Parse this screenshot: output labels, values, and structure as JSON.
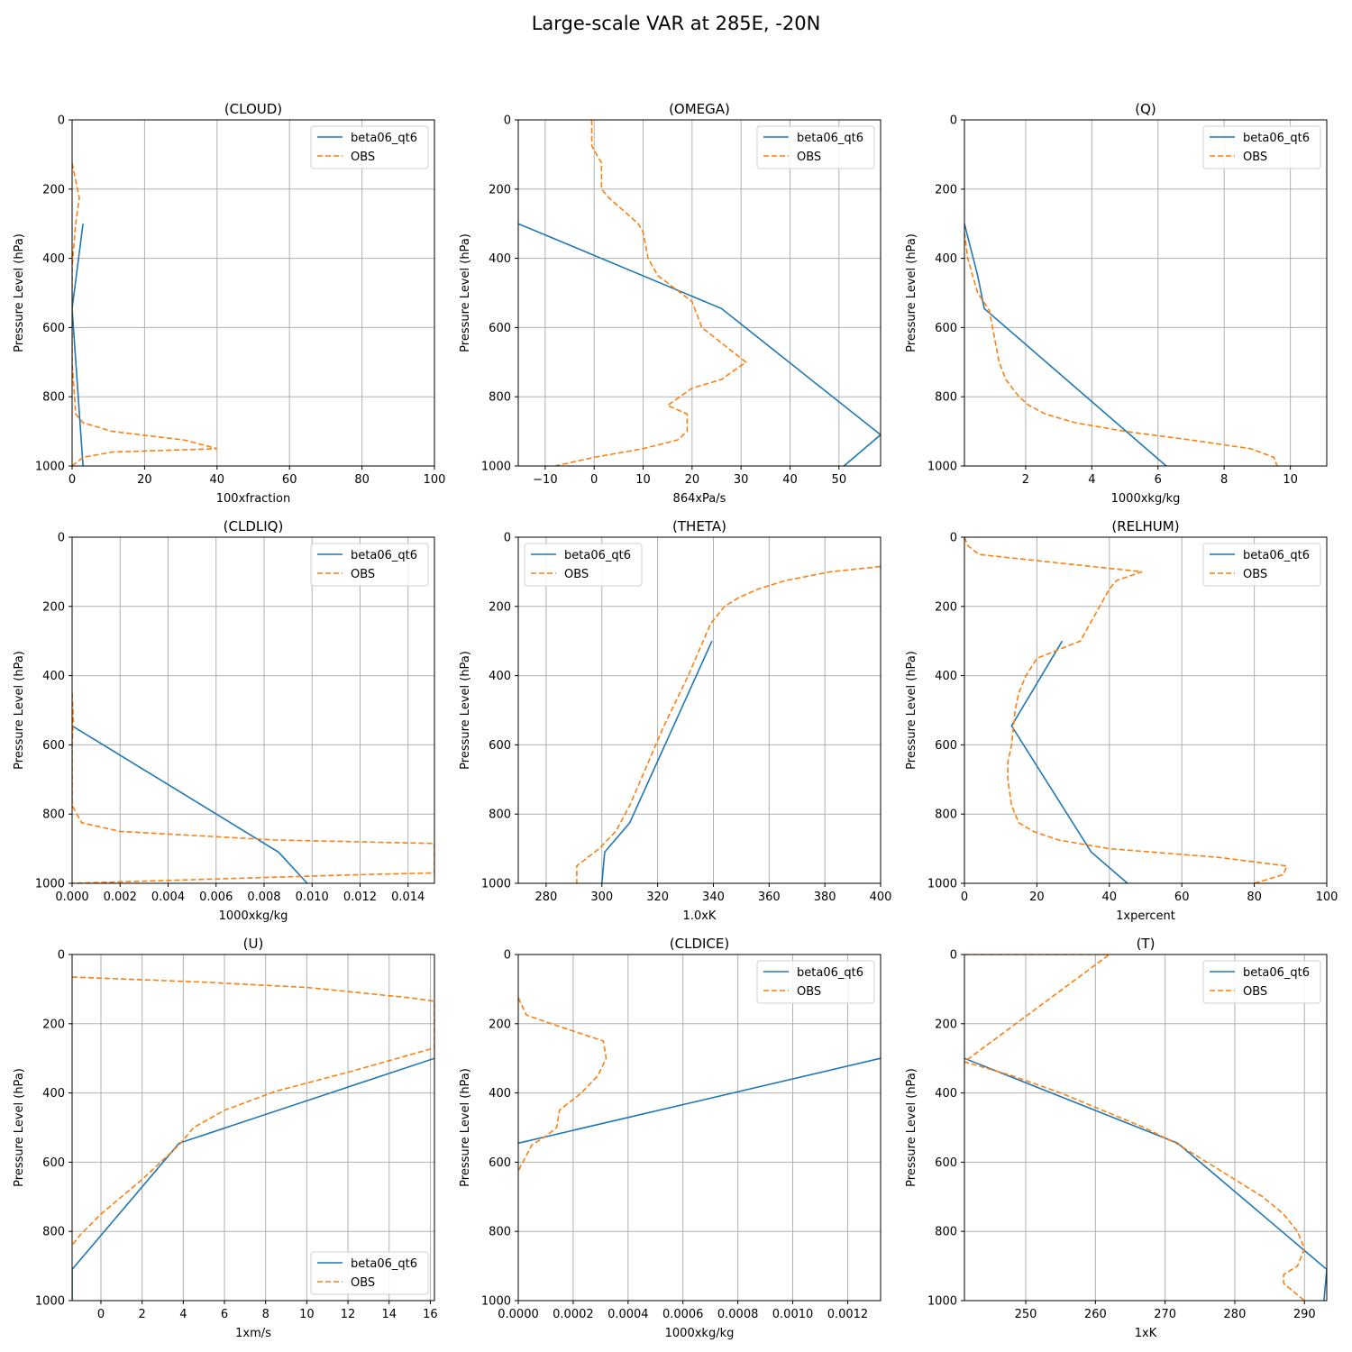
{
  "figure": {
    "title": "Large-scale VAR at 285E, -20N"
  },
  "colors": {
    "model": "#1f77b4",
    "obs": "#ff7f0e",
    "grid": "#b0b0b0",
    "axis": "#000000"
  },
  "chart_data": [
    {
      "type": "line",
      "title": "(CLOUD)",
      "xlabel": "100xfraction",
      "ylabel": "Pressure Level (hPa)",
      "xlim": [
        0,
        100
      ],
      "ylim": [
        1000,
        0
      ],
      "y_inverted": true,
      "grid": true,
      "legend": "top-right",
      "xticks": [
        0,
        20,
        40,
        60,
        80,
        100
      ],
      "xtick_labels": [
        "0",
        "20",
        "40",
        "60",
        "80",
        "100"
      ],
      "yticks": [
        0,
        200,
        400,
        600,
        800,
        1000
      ],
      "series": [
        {
          "name": "beta06_qt6",
          "style": "solid",
          "x": [
            3,
            0,
            3
          ],
          "y": [
            300,
            545,
            1000
          ]
        },
        {
          "name": "OBS",
          "style": "dashed",
          "x": [
            0,
            2,
            1,
            0,
            0,
            0,
            1,
            3,
            11,
            31,
            40,
            11,
            3,
            0
          ],
          "y": [
            125,
            225,
            300,
            425,
            550,
            700,
            850,
            875,
            900,
            925,
            950,
            960,
            975,
            1000
          ]
        }
      ]
    },
    {
      "type": "line",
      "title": "(OMEGA)",
      "xlabel": "864xPa/s",
      "ylabel": "Pressure Level (hPa)",
      "xlim": [
        -15.5,
        58.5
      ],
      "ylim": [
        1000,
        0
      ],
      "y_inverted": true,
      "grid": true,
      "legend": "top-right",
      "xticks": [
        -10,
        0,
        10,
        20,
        30,
        40,
        50
      ],
      "xtick_labels": [
        "−10",
        "0",
        "10",
        "20",
        "30",
        "40",
        "50"
      ],
      "yticks": [
        0,
        200,
        400,
        600,
        800,
        1000
      ],
      "series": [
        {
          "name": "beta06_qt6",
          "style": "solid",
          "x": [
            -15.5,
            26,
            58.5,
            51
          ],
          "y": [
            300,
            545,
            910,
            1000
          ]
        },
        {
          "name": "OBS",
          "style": "dashed",
          "x": [
            -0.5,
            -0.5,
            0.5,
            1.5,
            1.5,
            1.5,
            3,
            9,
            10,
            11,
            13,
            20,
            22,
            31,
            30,
            26,
            20,
            15,
            19,
            19,
            17,
            10,
            0,
            -8
          ],
          "y": [
            0,
            75,
            100,
            125,
            150,
            200,
            225,
            300,
            325,
            400,
            450,
            525,
            600,
            700,
            710,
            750,
            775,
            825,
            850,
            900,
            925,
            950,
            975,
            1000
          ]
        }
      ]
    },
    {
      "type": "line",
      "title": "(Q)",
      "xlabel": "1000xkg/kg",
      "ylabel": "Pressure Level (hPa)",
      "xlim": [
        0.15,
        11.1
      ],
      "ylim": [
        1000,
        0
      ],
      "y_inverted": true,
      "grid": true,
      "legend": "top-right",
      "xticks": [
        2,
        4,
        6,
        8,
        10
      ],
      "xtick_labels": [
        "2",
        "4",
        "6",
        "8",
        "10"
      ],
      "yticks": [
        0,
        200,
        400,
        600,
        800,
        1000
      ],
      "series": [
        {
          "name": "beta06_qt6",
          "style": "solid",
          "x": [
            0.15,
            0.55,
            0.75,
            6.25
          ],
          "y": [
            300,
            450,
            545,
            1000
          ]
        },
        {
          "name": "OBS",
          "style": "dashed",
          "x": [
            0.15,
            0.25,
            0.55,
            0.9,
            1.0,
            1.2,
            1.4,
            1.8,
            2.1,
            2.6,
            3.5,
            5.0,
            7.0,
            8.8,
            9.5,
            9.6
          ],
          "y": [
            325,
            400,
            500,
            550,
            600,
            700,
            750,
            800,
            825,
            850,
            875,
            900,
            925,
            950,
            975,
            1000
          ]
        }
      ]
    },
    {
      "type": "line",
      "title": "(CLDLIQ)",
      "xlabel": "1000xkg/kg",
      "ylabel": "Pressure Level (hPa)",
      "xlim": [
        0,
        0.0151
      ],
      "ylim": [
        1000,
        0
      ],
      "y_inverted": true,
      "grid": true,
      "legend": "top-right",
      "xticks": [
        0,
        0.002,
        0.004,
        0.006,
        0.008,
        0.01,
        0.012,
        0.014
      ],
      "xtick_labels": [
        "0.000",
        "0.002",
        "0.004",
        "0.006",
        "0.008",
        "0.010",
        "0.012",
        "0.014"
      ],
      "yticks": [
        0,
        200,
        400,
        600,
        800,
        1000
      ],
      "series": [
        {
          "name": "beta06_qt6",
          "style": "solid",
          "x": [
            0,
            0.0086,
            0.0098
          ],
          "y": [
            545,
            910,
            1000
          ]
        },
        {
          "name": "OBS",
          "style": "dashed",
          "x": [
            0,
            5e-05,
            0,
            0,
            0.0004,
            0.002,
            0.0085,
            0.0151,
            0.0151,
            0.012,
            0
          ],
          "y": [
            450,
            525,
            600,
            775,
            825,
            850,
            875,
            885,
            970,
            975,
            1000
          ]
        }
      ]
    },
    {
      "type": "line",
      "title": "(THETA)",
      "xlabel": "1.0xK",
      "ylabel": "Pressure Level (hPa)",
      "xlim": [
        270,
        400
      ],
      "ylim": [
        1000,
        0
      ],
      "y_inverted": true,
      "grid": true,
      "legend": "top-left",
      "xticks": [
        280,
        300,
        320,
        340,
        360,
        380,
        400
      ],
      "xtick_labels": [
        "280",
        "300",
        "320",
        "340",
        "360",
        "380",
        "400"
      ],
      "yticks": [
        0,
        200,
        400,
        600,
        800,
        1000
      ],
      "series": [
        {
          "name": "beta06_qt6",
          "style": "solid",
          "x": [
            339.5,
            310,
            301,
            300
          ],
          "y": [
            300,
            825,
            910,
            1000
          ]
        },
        {
          "name": "OBS",
          "style": "dashed",
          "x": [
            400,
            382,
            366,
            356,
            349,
            344,
            339,
            331,
            322,
            314,
            310,
            305,
            299,
            295,
            291,
            291
          ],
          "y": [
            85,
            100,
            125,
            150,
            175,
            200,
            250,
            400,
            550,
            700,
            775,
            850,
            900,
            925,
            950,
            1000
          ]
        }
      ]
    },
    {
      "type": "line",
      "title": "(RELHUM)",
      "xlabel": "1xpercent",
      "ylabel": "Pressure Level (hPa)",
      "xlim": [
        0,
        100
      ],
      "ylim": [
        1000,
        0
      ],
      "y_inverted": true,
      "grid": true,
      "legend": "top-right",
      "xticks": [
        0,
        20,
        40,
        60,
        80,
        100
      ],
      "xtick_labels": [
        "0",
        "20",
        "40",
        "60",
        "80",
        "100"
      ],
      "yticks": [
        0,
        200,
        400,
        600,
        800,
        1000
      ],
      "series": [
        {
          "name": "beta06_qt6",
          "style": "solid",
          "x": [
            27,
            13,
            35,
            45
          ],
          "y": [
            300,
            545,
            910,
            1000
          ]
        },
        {
          "name": "OBS",
          "style": "dashed",
          "x": [
            0,
            1,
            4,
            49,
            42,
            40,
            36,
            32,
            20,
            17,
            15,
            14,
            13,
            12,
            12,
            13,
            15,
            19,
            26,
            40,
            70,
            89,
            88,
            80
          ],
          "y": [
            0,
            25,
            50,
            100,
            125,
            150,
            225,
            300,
            350,
            400,
            450,
            500,
            600,
            650,
            700,
            775,
            825,
            850,
            875,
            900,
            925,
            950,
            975,
            1000
          ]
        }
      ]
    },
    {
      "type": "line",
      "title": "(U)",
      "xlabel": "1xm/s",
      "ylabel": "Pressure Level (hPa)",
      "xlim": [
        -1.4,
        16.2
      ],
      "ylim": [
        1000,
        0
      ],
      "y_inverted": true,
      "grid": true,
      "legend": "bottom-right",
      "xticks": [
        0,
        2,
        4,
        6,
        8,
        10,
        12,
        14,
        16
      ],
      "xtick_labels": [
        "0",
        "2",
        "4",
        "6",
        "8",
        "10",
        "12",
        "14",
        "16"
      ],
      "yticks": [
        0,
        200,
        400,
        600,
        800,
        1000
      ],
      "series": [
        {
          "name": "beta06_qt6",
          "style": "solid",
          "x": [
            16.2,
            3.8,
            -1.4,
            -1.4
          ],
          "y": [
            300,
            545,
            910,
            1000
          ]
        },
        {
          "name": "OBS",
          "style": "dashed",
          "x": [
            -1.4,
            5,
            10,
            15,
            16.2,
            16.2,
            12,
            8.5,
            6,
            4.5,
            3.8,
            2,
            0,
            -1,
            -1.4
          ],
          "y": [
            65,
            80,
            95,
            125,
            135,
            270,
            340,
            395,
            450,
            500,
            550,
            650,
            750,
            810,
            840
          ]
        }
      ]
    },
    {
      "type": "line",
      "title": "(CLDICE)",
      "xlabel": "1000xkg/kg",
      "ylabel": "Pressure Level (hPa)",
      "xlim": [
        0,
        0.00132
      ],
      "ylim": [
        1000,
        0
      ],
      "y_inverted": true,
      "grid": true,
      "legend": "top-right",
      "xticks": [
        0,
        0.0002,
        0.0004,
        0.0006,
        0.0008,
        0.001,
        0.0012
      ],
      "xtick_labels": [
        "0.0000",
        "0.0002",
        "0.0004",
        "0.0006",
        "0.0008",
        "0.0010",
        "0.0012"
      ],
      "yticks": [
        0,
        200,
        400,
        600,
        800,
        1000
      ],
      "series": [
        {
          "name": "beta06_qt6",
          "style": "solid",
          "x": [
            0.00132,
            0
          ],
          "y": [
            300,
            545
          ]
        },
        {
          "name": "OBS",
          "style": "dashed",
          "x": [
            0,
            3e-05,
            0.00012,
            0.00031,
            0.00032,
            0.00029,
            0.00023,
            0.00015,
            0.00014,
            0.0001,
            5e-05,
            0
          ],
          "y": [
            125,
            175,
            200,
            250,
            300,
            350,
            400,
            450,
            500,
            525,
            550,
            625
          ]
        }
      ]
    },
    {
      "type": "line",
      "title": "(T)",
      "xlabel": "1xK",
      "ylabel": "Pressure Level (hPa)",
      "xlim": [
        241.2,
        293.2
      ],
      "ylim": [
        1000,
        0
      ],
      "y_inverted": true,
      "grid": true,
      "legend": "top-right",
      "xticks": [
        250,
        260,
        270,
        280,
        290
      ],
      "xtick_labels": [
        "250",
        "260",
        "270",
        "280",
        "290"
      ],
      "yticks": [
        0,
        200,
        400,
        600,
        800,
        1000
      ],
      "series": [
        {
          "name": "beta06_qt6",
          "style": "solid",
          "x": [
            241.2,
            271.8,
            293.2,
            292.8
          ],
          "y": [
            300,
            545,
            910,
            1000
          ]
        },
        {
          "name": "OBS",
          "style": "dashed",
          "x": [
            241.2,
            262,
            241.2,
            248,
            255,
            261,
            267,
            272,
            276,
            280,
            284,
            287,
            289,
            290,
            289,
            287,
            287,
            290
          ],
          "y": [
            0,
            0,
            310,
            350,
            400,
            450,
            500,
            550,
            600,
            650,
            700,
            750,
            800,
            850,
            900,
            925,
            950,
            1000
          ]
        }
      ]
    }
  ]
}
